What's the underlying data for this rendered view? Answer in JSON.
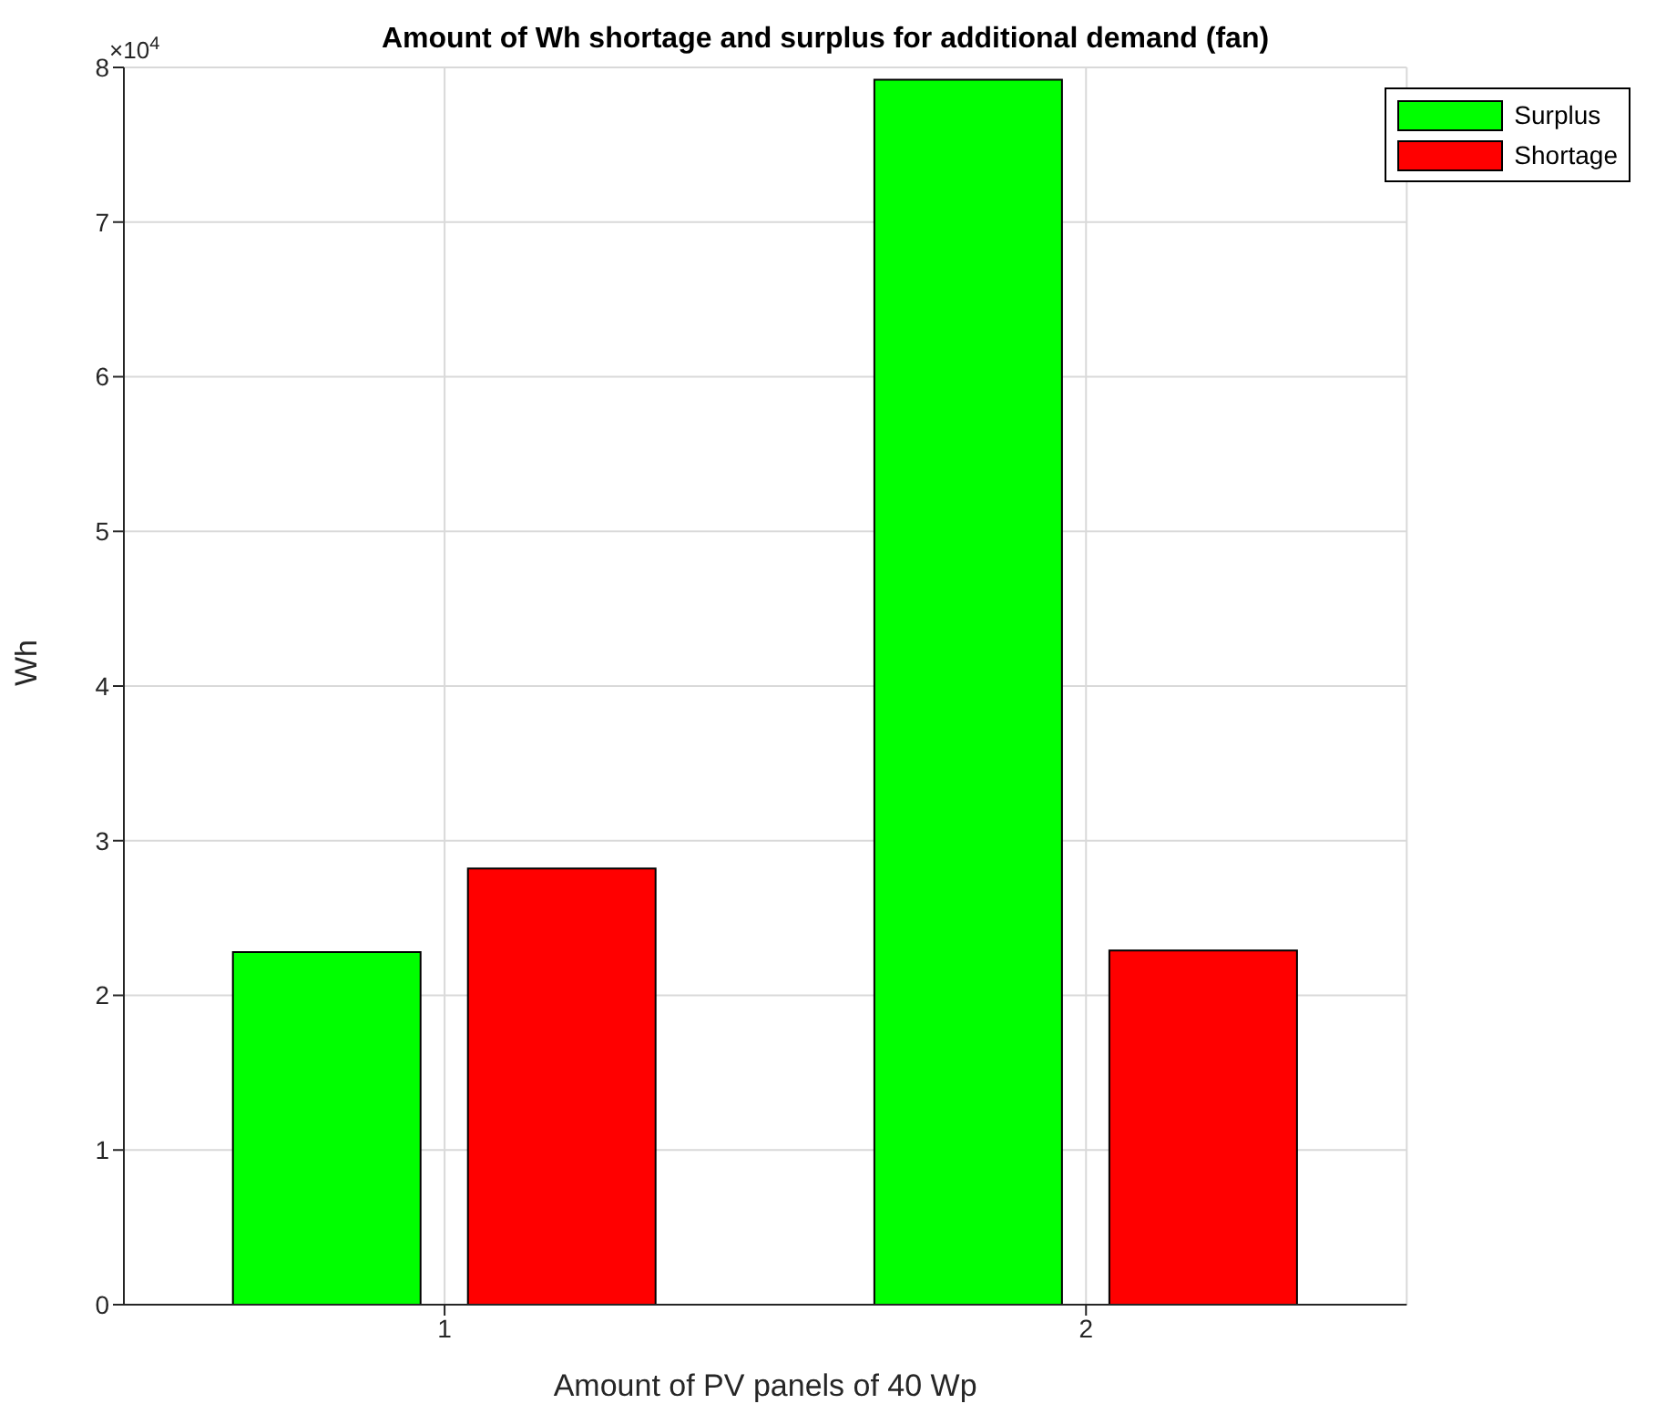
{
  "chart_data": {
    "type": "bar",
    "title": "Amount of Wh shortage and surplus for additional demand (fan)",
    "xlabel": "Amount of PV panels of 40 Wp",
    "ylabel": "Wh",
    "categories": [
      "1",
      "2"
    ],
    "series": [
      {
        "name": "Surplus",
        "color": "#00ff00",
        "values": [
          2.28,
          7.92
        ]
      },
      {
        "name": "Shortage",
        "color": "#ff0000",
        "values": [
          2.82,
          2.29
        ]
      }
    ],
    "ylim": [
      0,
      8
    ],
    "yticks": [
      0,
      1,
      2,
      3,
      4,
      5,
      6,
      7,
      8
    ],
    "annotations": [
      "×10$^{4}$"
    ],
    "grid": true,
    "legend": "top right"
  }
}
